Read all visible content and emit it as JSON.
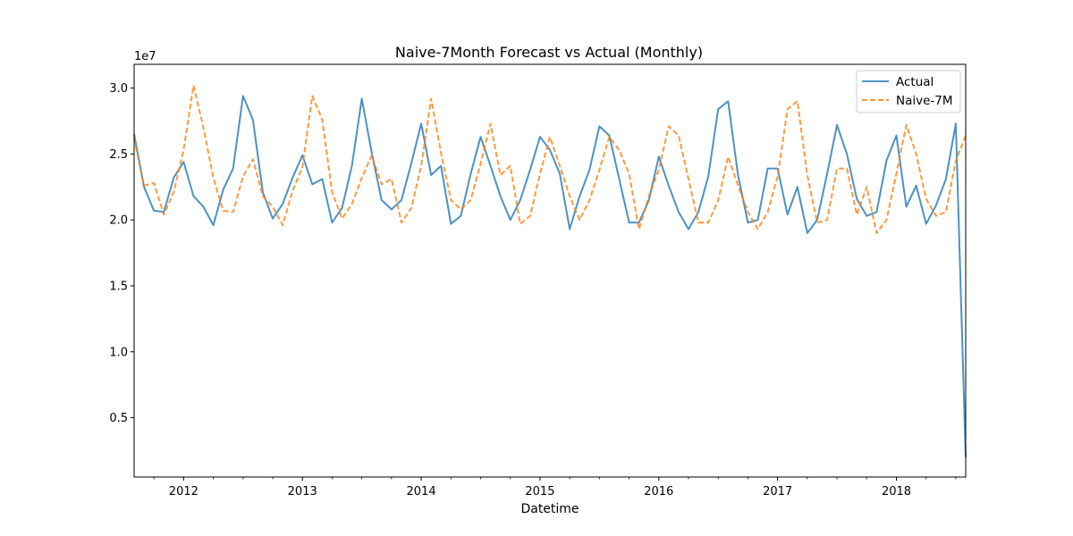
{
  "chart_data": {
    "type": "line",
    "title": "Naive-7Month Forecast vs Actual (Monthly)",
    "xlabel": "Datetime",
    "ylabel": "",
    "y_scale_label": "1e7",
    "x_start": "2011-08",
    "x_end": "2018-08",
    "ylim": [
      500000,
      31800000
    ],
    "yticks": [
      5000000,
      10000000,
      15000000,
      20000000,
      25000000,
      30000000
    ],
    "ytick_labels": [
      "0.5",
      "1.0",
      "1.5",
      "2.0",
      "2.5",
      "3.0"
    ],
    "xtick_labels": [
      {
        "date": "2012-01",
        "label": "2012"
      },
      {
        "date": "2013-01",
        "label": "2013"
      },
      {
        "date": "2014-01",
        "label": "2014"
      },
      {
        "date": "2015-01",
        "label": "2015"
      },
      {
        "date": "2016-01",
        "label": "2016"
      },
      {
        "date": "2017-01",
        "label": "2017"
      },
      {
        "date": "2018-01",
        "label": "2018"
      }
    ],
    "legend_position": "top-right",
    "grid": false,
    "series": [
      {
        "name": "Actual",
        "color": "#1f77b4",
        "style": "solid",
        "values": [
          26500000,
          22500000,
          20700000,
          20600000,
          23200000,
          24400000,
          21800000,
          21000000,
          19600000,
          22300000,
          23900000,
          29400000,
          27600000,
          22100000,
          20100000,
          21200000,
          23200000,
          24900000,
          22700000,
          23100000,
          19800000,
          20900000,
          24100000,
          29200000,
          25100000,
          21500000,
          20800000,
          21500000,
          24300000,
          27300000,
          23400000,
          24100000,
          19700000,
          20300000,
          23500000,
          26300000,
          24100000,
          21800000,
          20000000,
          21500000,
          23800000,
          26300000,
          25300000,
          23500000,
          19300000,
          21800000,
          23800000,
          27100000,
          26400000,
          23100000,
          19800000,
          19800000,
          21500000,
          24800000,
          22600000,
          20600000,
          19300000,
          20600000,
          23300000,
          28400000,
          29000000,
          23400000,
          19800000,
          20000000,
          23900000,
          23900000,
          20400000,
          22500000,
          19000000,
          20000000,
          23500000,
          27200000,
          25000000,
          21600000,
          20300000,
          20600000,
          24500000,
          26400000,
          21000000,
          22600000,
          19700000,
          21100000,
          23100000,
          27300000,
          2000000
        ]
      },
      {
        "name": "Naive-7M",
        "color": "#ff7f0e",
        "style": "dashed",
        "values": [
          26200000,
          22600000,
          22800000,
          20400000,
          22100000,
          25300000,
          30200000,
          27000000,
          23200000,
          20700000,
          20600000,
          23300000,
          24600000,
          21800000,
          21000000,
          19600000,
          22200000,
          24000000,
          29400000,
          27600000,
          22100000,
          20100000,
          21200000,
          23200000,
          24900000,
          22700000,
          23100000,
          19800000,
          20900000,
          24100000,
          29200000,
          25100000,
          21500000,
          20800000,
          21500000,
          24300000,
          27300000,
          23400000,
          24100000,
          19700000,
          20300000,
          23500000,
          26300000,
          24100000,
          21800000,
          20000000,
          21500000,
          23800000,
          26300000,
          25300000,
          23500000,
          19300000,
          21800000,
          23800000,
          27100000,
          26400000,
          23100000,
          19800000,
          19800000,
          21500000,
          24800000,
          22600000,
          20600000,
          19300000,
          20600000,
          23300000,
          28400000,
          29000000,
          23400000,
          19800000,
          20000000,
          23900000,
          23900000,
          20400000,
          22500000,
          19000000,
          20000000,
          23500000,
          27200000,
          25000000,
          21600000,
          20300000,
          20600000,
          24500000,
          26400000
        ]
      }
    ]
  }
}
